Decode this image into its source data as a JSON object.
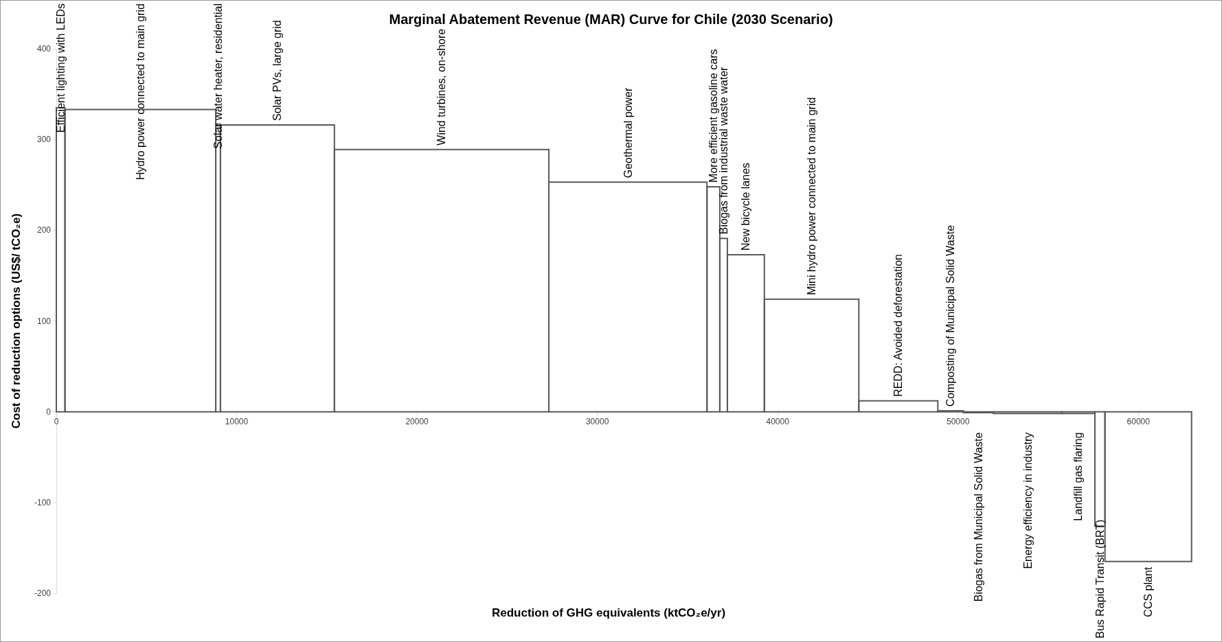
{
  "chart_data": {
    "type": "bar",
    "title": "Marginal Abatement Revenue (MAR) Curve for Chile (2030 Scenario)",
    "xlabel": "Reduction of GHG equivalents (ktCO₂e/yr)",
    "ylabel": "Cost of reduction options (US$/ tCO₂e)",
    "x": [
      240,
      4660,
      8970,
      12260,
      21365,
      31695,
      36435,
      37000,
      38235,
      41880,
      46690,
      49590,
      51130,
      53860,
      56675,
      57870,
      60550
    ],
    "values": [
      335,
      333,
      317,
      316,
      289,
      253,
      248,
      191,
      173,
      124,
      12,
      1,
      -1,
      -2,
      -2,
      -126,
      -165
    ],
    "color": "#595959",
    "xlim": [
      0,
      63000
    ],
    "xticks": [
      0,
      10000,
      20000,
      30000,
      40000,
      50000,
      60000
    ],
    "ylim": [
      -200,
      400
    ],
    "yticks": [
      -200,
      -100,
      0,
      100,
      200,
      300,
      400
    ],
    "annotations": [
      {
        "text": "Efficient lighting with LEDs",
        "x": 240,
        "y": 335
      },
      {
        "text": "Hydro power connected to main grid",
        "x": 4660,
        "y": 333
      },
      {
        "text": "Solar water heater, residential",
        "x": 8970,
        "y": 317
      },
      {
        "text": "Solar PVs, large grid",
        "x": 12260,
        "y": 316
      },
      {
        "text": "Wind turbines, on-shore",
        "x": 21365,
        "y": 289
      },
      {
        "text": "Geothermal power",
        "x": 31695,
        "y": 253
      },
      {
        "text": "More efficient gasoline cars",
        "x": 36435,
        "y": 248
      },
      {
        "text": "Biogas from industrial waste water",
        "x": 37000,
        "y": 191
      },
      {
        "text": "New bicycle lanes",
        "x": 38235,
        "y": 173
      },
      {
        "text": "Mini hydro power connected to main grid",
        "x": 41880,
        "y": 124
      },
      {
        "text": "REDD: Avoided deforestation",
        "x": 46690,
        "y": 12
      },
      {
        "text": "Composting of Municipal Solid Waste",
        "x": 49590,
        "y": 1
      },
      {
        "text": "Biogas from Municipal Solid Waste",
        "x": 51130,
        "y": -1
      },
      {
        "text": "Energy efficiency in industry",
        "x": 53860,
        "y": -2
      },
      {
        "text": "Landfill gas flaring",
        "x": 56675,
        "y": -2
      },
      {
        "text": "Bus Rapid Transit (BRT)",
        "x": 57870,
        "y": -126
      },
      {
        "text": "CCS plant",
        "x": 60550,
        "y": -165
      }
    ]
  }
}
